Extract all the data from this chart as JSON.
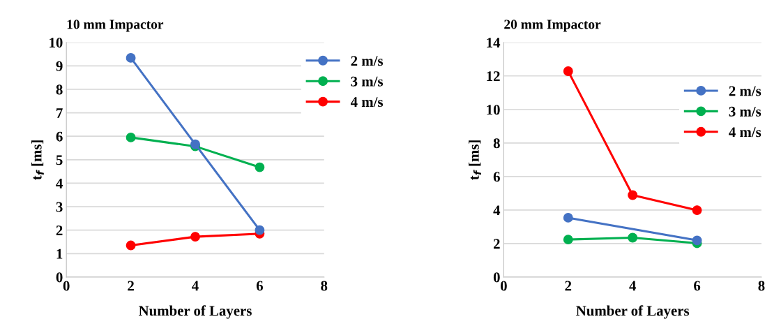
{
  "chart_data": [
    {
      "type": "line",
      "title": "10 mm Impactor",
      "xlabel": "Number of Layers",
      "ylabel": "t$_{f}$ [ms]",
      "x": [
        2,
        4,
        6
      ],
      "series": [
        {
          "name": "2 m/s",
          "color": "#4472c4",
          "values": [
            9.34,
            5.66,
            2.0
          ]
        },
        {
          "name": "3 m/s",
          "color": "#00b050",
          "values": [
            5.95,
            5.57,
            4.68
          ]
        },
        {
          "name": "4 m/s",
          "color": "#ff0000",
          "values": [
            1.35,
            1.72,
            1.85
          ]
        }
      ],
      "xlim": [
        0,
        8
      ],
      "xticks": [
        0,
        2,
        4,
        6,
        8
      ],
      "ylim": [
        0,
        10
      ],
      "yticks": [
        0,
        1,
        2,
        3,
        4,
        5,
        6,
        7,
        8,
        9,
        10
      ],
      "grid": "y",
      "legend": "top right",
      "marker": "circle",
      "line_style": "solid"
    },
    {
      "type": "line",
      "title": "20 mm Impactor",
      "xlabel": "Number of Layers",
      "ylabel": "t$_{f}$ [ms]",
      "x": [
        2,
        4,
        6
      ],
      "series": [
        {
          "name": "2 m/s",
          "color": "#4472c4",
          "values": [
            3.54,
            null,
            2.19
          ]
        },
        {
          "name": "3 m/s",
          "color": "#00b050",
          "values": [
            2.24,
            2.35,
            2.02
          ]
        },
        {
          "name": "4 m/s",
          "color": "#ff0000",
          "values": [
            12.28,
            4.89,
            3.99
          ]
        }
      ],
      "xlim": [
        0,
        8
      ],
      "xticks": [
        0,
        2,
        4,
        6,
        8
      ],
      "ylim": [
        0,
        14
      ],
      "yticks": [
        0,
        2,
        4,
        6,
        8,
        10,
        12,
        14
      ],
      "grid": "y",
      "legend": "right",
      "marker": "circle",
      "line_style": "solid"
    }
  ]
}
